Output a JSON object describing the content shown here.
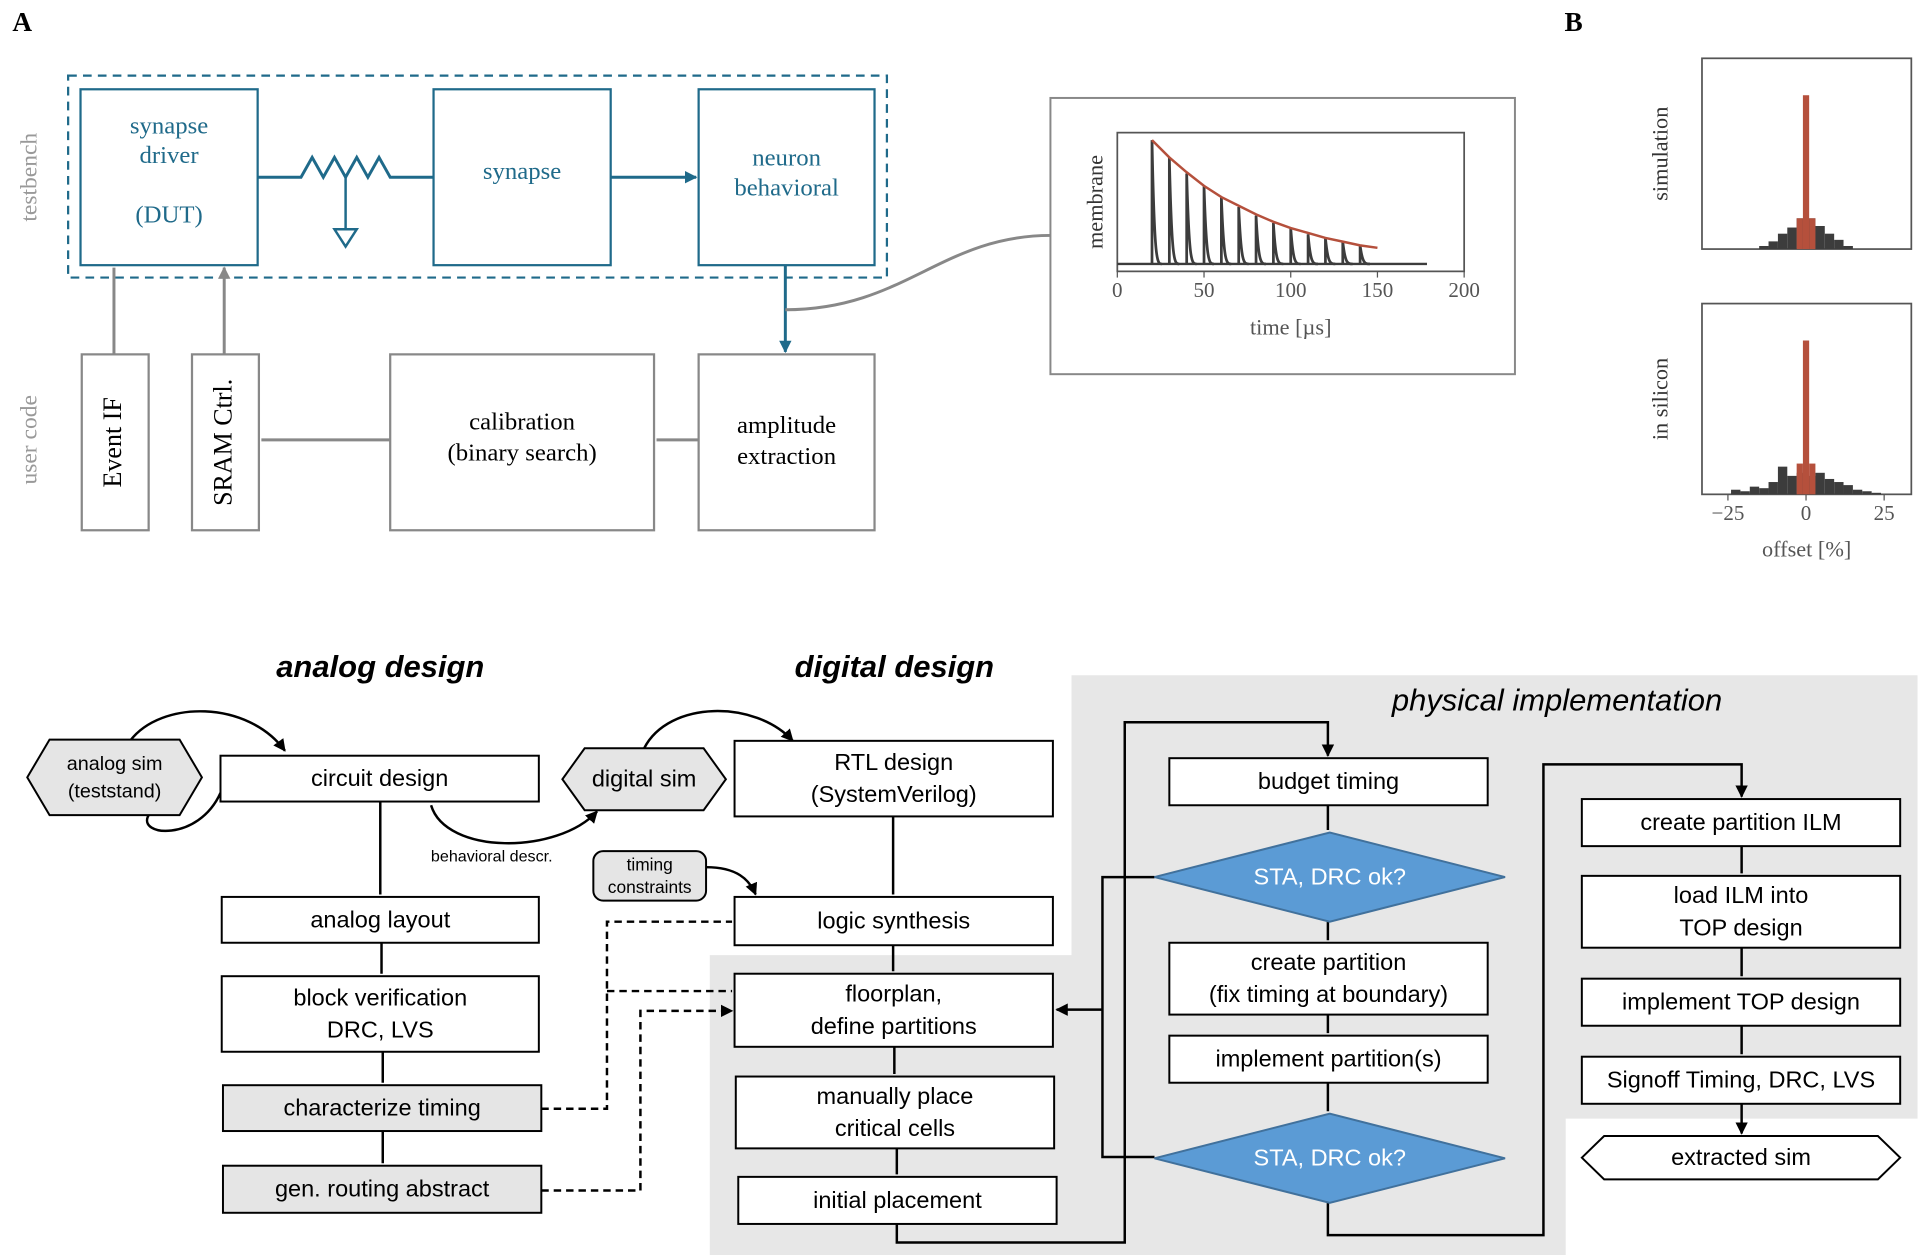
{
  "panel_a": {
    "label": "A",
    "group_labels": [
      "testbench",
      "user code"
    ],
    "blocks": [
      {
        "lines": [
          "synapse",
          "driver",
          "(DUT)"
        ]
      },
      {
        "lines": [
          "synapse"
        ]
      },
      {
        "lines": [
          "neuron",
          "behavioral"
        ]
      },
      {
        "lines": [
          "Event IF"
        ]
      },
      {
        "lines": [
          "SRAM Ctrl."
        ]
      },
      {
        "lines": [
          "calibration",
          "(binary search)"
        ]
      },
      {
        "lines": [
          "amplitude",
          "extraction"
        ]
      }
    ]
  },
  "panel_b": {
    "label": "B"
  },
  "chart_data": [
    {
      "type": "line",
      "y_label": "membrane",
      "x_label": "time [µs]",
      "xlim": [
        0,
        200
      ],
      "xticks": [
        0,
        50,
        100,
        150,
        200
      ],
      "ylim": [
        -0.06,
        1.06
      ],
      "x": [
        20,
        30,
        40,
        50,
        60,
        70,
        80,
        90,
        100,
        110,
        120,
        130,
        140,
        150
      ],
      "series": [
        {
          "color": "#3c3c3c",
          "values": [
            1.0,
            0.86,
            0.73,
            0.63,
            0.54,
            0.46,
            0.39,
            0.33,
            0.29,
            0.24,
            0.21,
            0.18,
            0.15,
            null
          ]
        },
        {
          "color": "#b5503c",
          "values": [
            1.0,
            0.86,
            0.74,
            0.63,
            0.54,
            0.47,
            0.4,
            0.34,
            0.29,
            0.25,
            0.21,
            0.18,
            0.15,
            0.13
          ]
        }
      ]
    },
    {
      "type": "histogram",
      "y_label": "simulation",
      "xlim": [
        -33.3,
        33.7
      ],
      "ylim": [
        0,
        124
      ],
      "series": [
        {
          "color": "#3c3c3c",
          "bins": [
            -15,
            -12,
            -9,
            -6,
            -3,
            0,
            3,
            6,
            9,
            12,
            15
          ],
          "values": [
            2,
            5,
            10,
            14,
            20,
            20,
            15,
            10,
            6,
            2
          ]
        },
        {
          "color": "#b5503c",
          "bins": [
            -3,
            -1,
            1,
            3
          ],
          "values": [
            20,
            100,
            20
          ]
        }
      ]
    },
    {
      "type": "histogram",
      "y_label": "in silicon",
      "x_label": "offset [%]",
      "xlim": [
        -33.3,
        33.7
      ],
      "ylim": [
        0,
        124
      ],
      "xticks": [
        {
          "value": -25,
          "label": "−25"
        },
        0,
        25
      ],
      "series": [
        {
          "color": "#3c3c3c",
          "bins": [
            -24,
            -21,
            -18,
            -15,
            -12,
            -9,
            -6,
            -3,
            0,
            3,
            6,
            9,
            12,
            15,
            18,
            21,
            24
          ],
          "values": [
            3,
            2,
            5,
            4,
            8,
            18,
            12,
            14,
            12,
            14,
            10,
            8,
            6,
            3,
            2,
            1
          ]
        },
        {
          "color": "#b5503c",
          "bins": [
            -3,
            -1,
            1,
            3
          ],
          "values": [
            20,
            100,
            20
          ]
        }
      ]
    }
  ],
  "flow": {
    "headings": [
      "analog design",
      "digital design",
      "physical implementation"
    ],
    "nodes": [
      {
        "lines": [
          "analog sim",
          "(teststand)"
        ]
      },
      {
        "lines": [
          "circuit design"
        ]
      },
      {
        "lines": [
          "digital sim"
        ]
      },
      {
        "lines": [
          "RTL design",
          "(SystemVerilog)"
        ]
      },
      {
        "lines": [
          "timing",
          "constraints"
        ]
      },
      {
        "lines": [
          "analog layout"
        ]
      },
      {
        "lines": [
          "block verification",
          "DRC, LVS"
        ]
      },
      {
        "lines": [
          "characterize timing"
        ]
      },
      {
        "lines": [
          "gen. routing abstract"
        ]
      },
      {
        "lines": [
          "logic synthesis"
        ]
      },
      {
        "lines": [
          "floorplan,",
          "define partitions"
        ]
      },
      {
        "lines": [
          "manually place",
          "critical cells"
        ]
      },
      {
        "lines": [
          "initial placement"
        ]
      },
      {
        "lines": [
          "budget timing"
        ]
      },
      {
        "lines": [
          "STA, DRC ok?"
        ]
      },
      {
        "lines": [
          "create partition",
          "(fix timing at boundary)"
        ]
      },
      {
        "lines": [
          "implement partition(s)"
        ]
      },
      {
        "lines": [
          "STA, DRC ok?"
        ]
      },
      {
        "lines": [
          "create partition ILM"
        ]
      },
      {
        "lines": [
          "load ILM into",
          "TOP design"
        ]
      },
      {
        "lines": [
          "implement TOP design"
        ]
      },
      {
        "lines": [
          "Signoff Timing, DRC, LVS"
        ]
      },
      {
        "lines": [
          "extracted sim"
        ]
      }
    ],
    "edge_labels": [
      "behavioral descr."
    ]
  }
}
